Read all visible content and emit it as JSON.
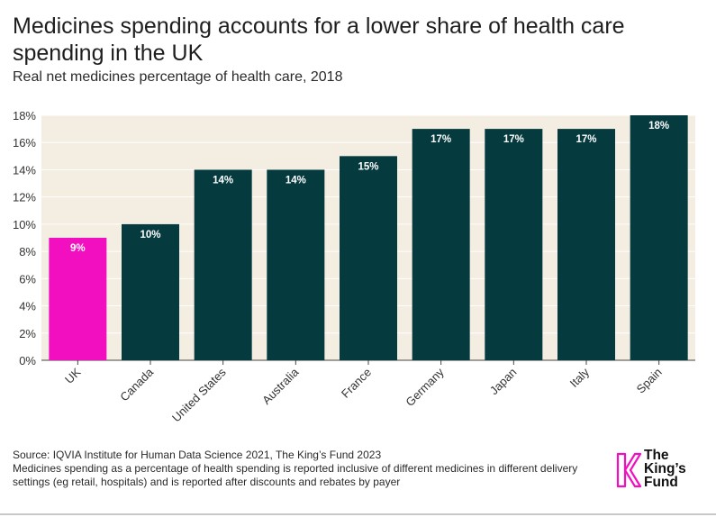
{
  "title": "Medicines spending accounts for a lower share of health care spending in the UK",
  "subtitle": "Real net medicines percentage of health care, 2018",
  "chart_data": {
    "type": "bar",
    "categories": [
      "UK",
      "Canada",
      "United States",
      "Australia",
      "France",
      "Germany",
      "Japan",
      "Italy",
      "Spain"
    ],
    "values": [
      9,
      10,
      14,
      14,
      15,
      17,
      17,
      17,
      18
    ],
    "data_labels": [
      "9%",
      "10%",
      "14%",
      "14%",
      "15%",
      "17%",
      "17%",
      "17%",
      "18%"
    ],
    "y_ticks": [
      0,
      2,
      4,
      6,
      8,
      10,
      12,
      14,
      16,
      18
    ],
    "y_tick_labels": [
      "0%",
      "2%",
      "4%",
      "6%",
      "8%",
      "10%",
      "12%",
      "14%",
      "16%",
      "18%"
    ],
    "ylim": [
      0,
      18
    ],
    "xlabel": "",
    "ylabel": "",
    "grid": true,
    "colors": {
      "highlight": "#f20fc0",
      "bar": "#053a3f",
      "plot_background": "#f4ede2",
      "gridline": "#ffffff"
    }
  },
  "footer": {
    "source": "Source: IQVIA Institute for Human Data Science 2021, The King’s Fund 2023",
    "note": "Medicines spending as a percentage of health spending is reported inclusive of different medicines in different delivery settings (eg retail, hospitals) and is reported after discounts and rebates by payer"
  },
  "logo": {
    "line1": "The",
    "line2": "King’s",
    "line3": "Fund",
    "color": "#f20fc0"
  }
}
